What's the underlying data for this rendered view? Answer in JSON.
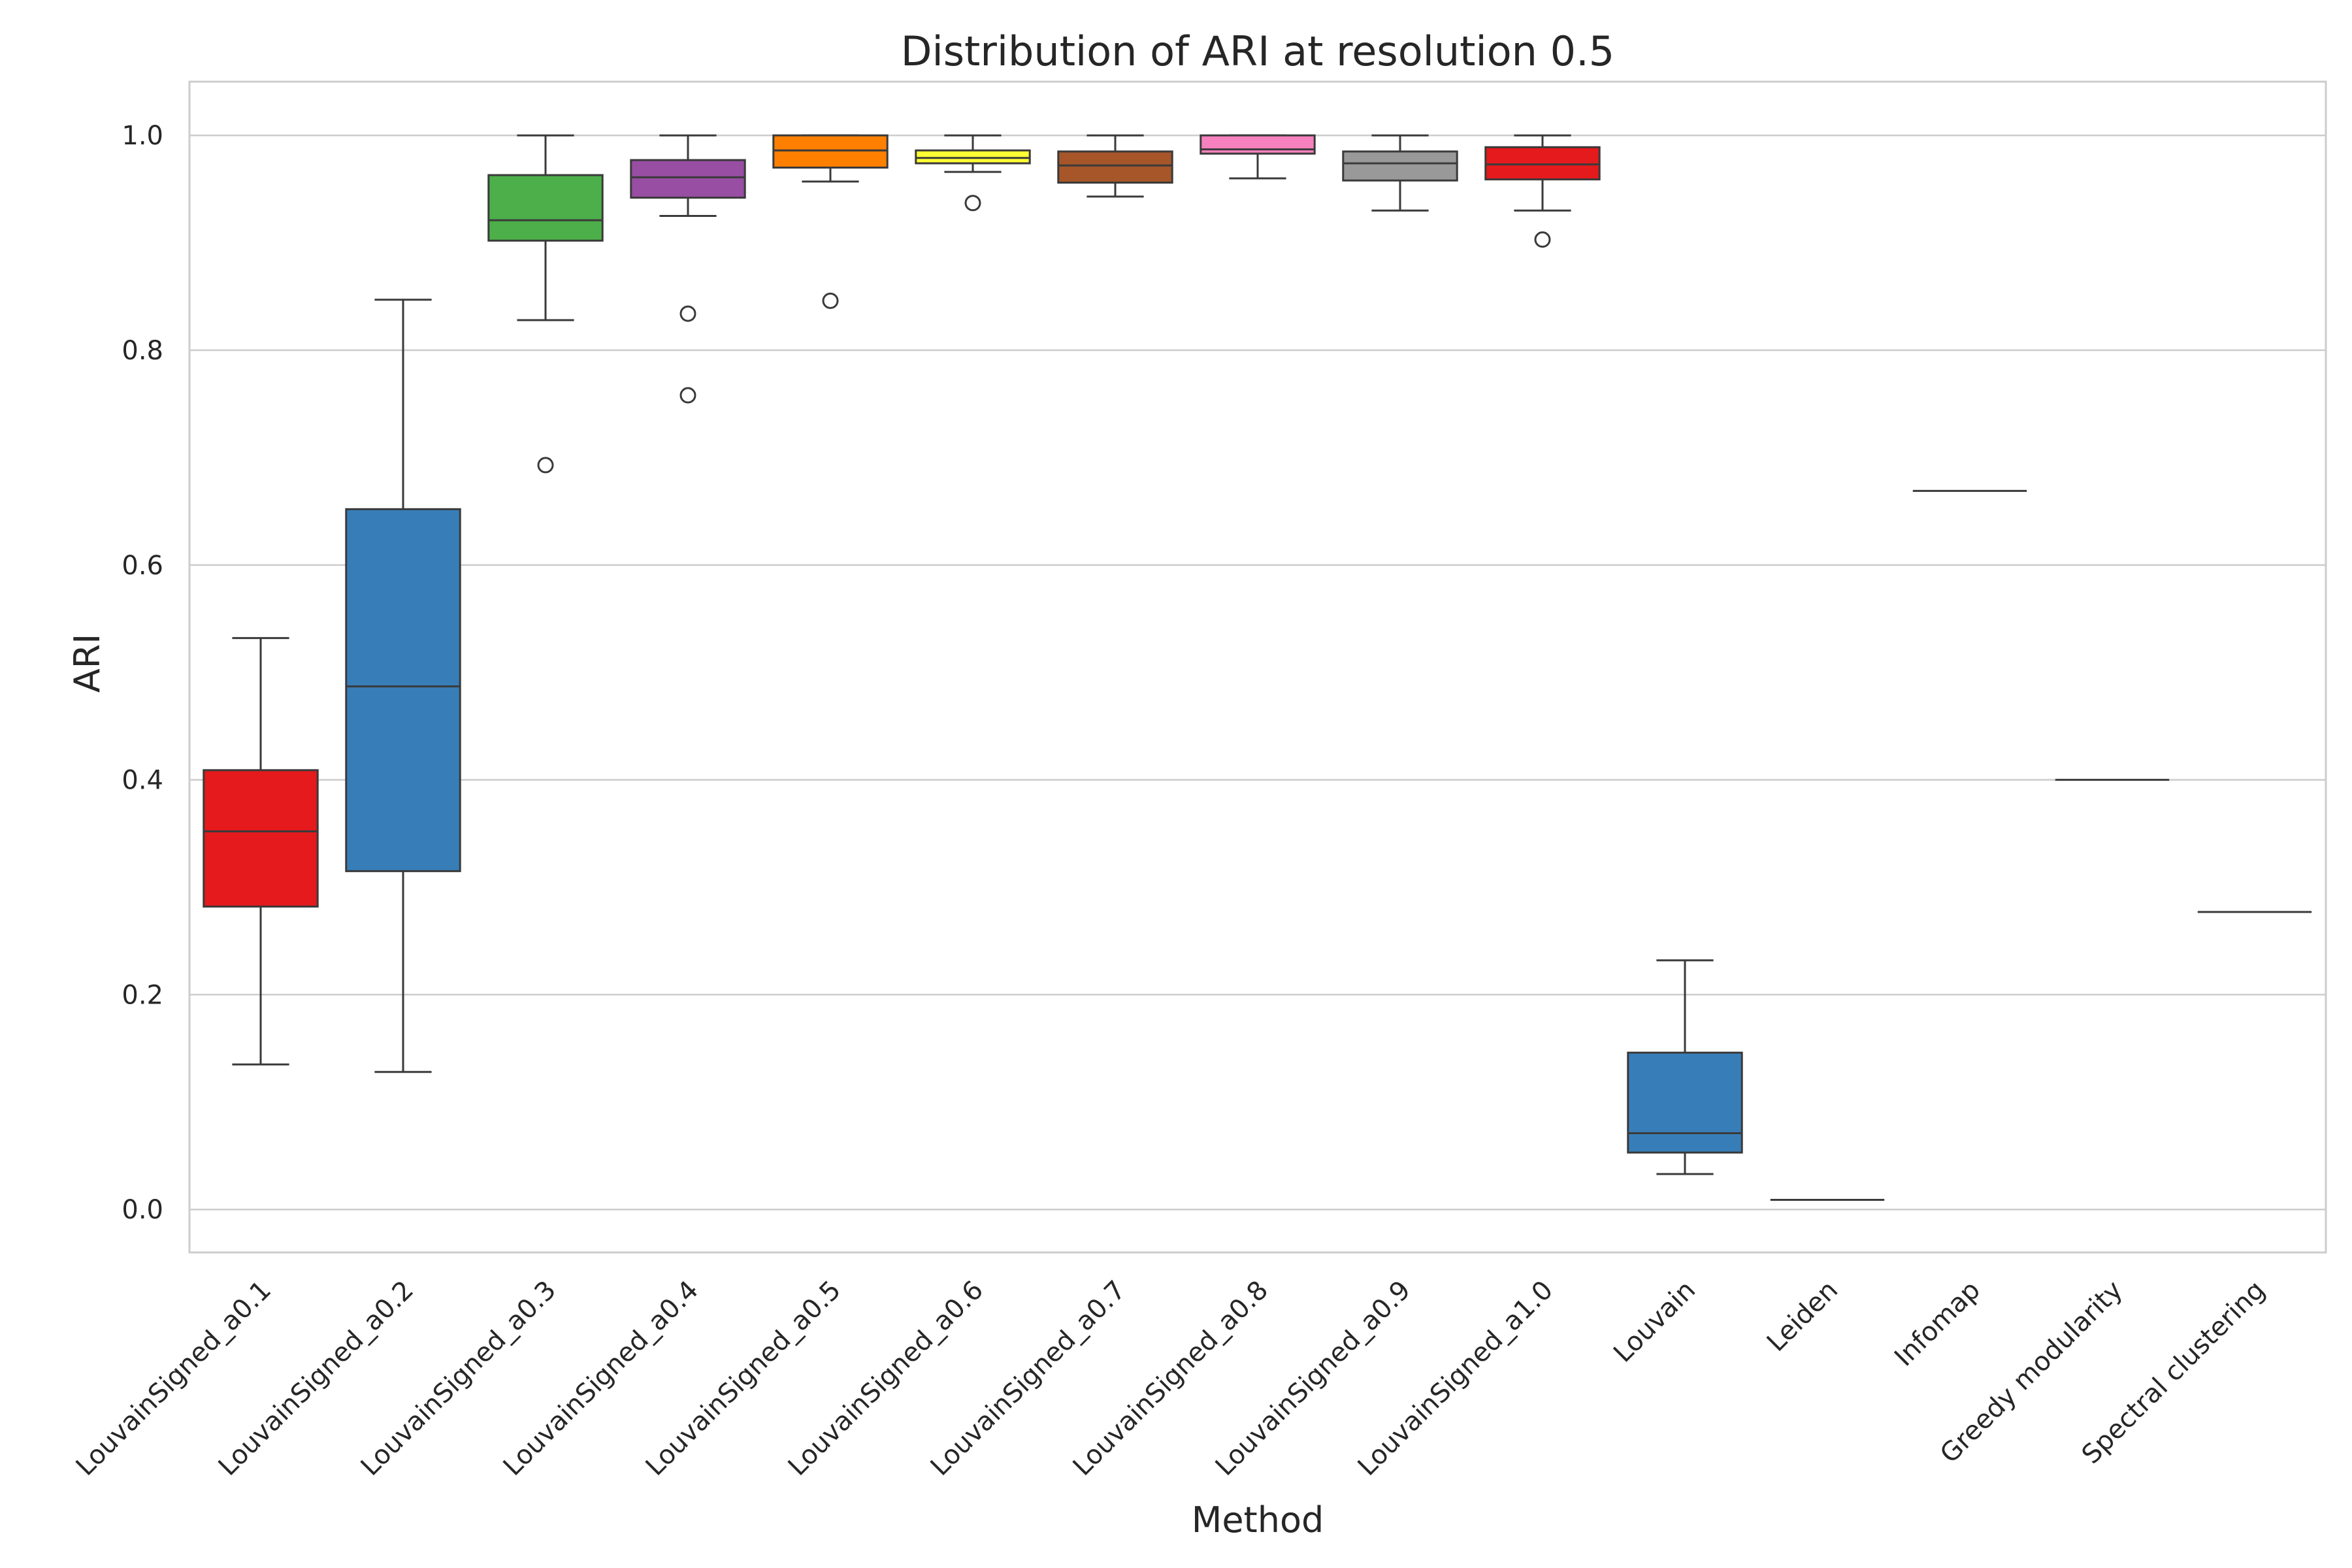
{
  "chart_data": {
    "type": "box",
    "title": "Distribution of ARI at resolution 0.5",
    "xlabel": "Method",
    "ylabel": "ARI",
    "ylim": [
      -0.04,
      1.05
    ],
    "yticks": [
      0.0,
      0.2,
      0.4,
      0.6,
      0.8,
      1.0
    ],
    "ytick_labels": [
      "0.0",
      "0.2",
      "0.4",
      "0.6",
      "0.8",
      "1.0"
    ],
    "grid": true,
    "categories": [
      "LouvainSigned_a0.1",
      "LouvainSigned_a0.2",
      "LouvainSigned_a0.3",
      "LouvainSigned_a0.4",
      "LouvainSigned_a0.5",
      "LouvainSigned_a0.6",
      "LouvainSigned_a0.7",
      "LouvainSigned_a0.8",
      "LouvainSigned_a0.9",
      "LouvainSigned_a1.0",
      "Louvain",
      "Leiden",
      "Infomap",
      "Greedy modularity",
      "Spectral clustering"
    ],
    "boxes": [
      {
        "category": "LouvainSigned_a0.1",
        "whisker_low": 0.135,
        "q1": 0.282,
        "median": 0.352,
        "q3": 0.409,
        "whisker_high": 0.532,
        "outliers": [],
        "color": "#e41a1c"
      },
      {
        "category": "LouvainSigned_a0.2",
        "whisker_low": 0.128,
        "q1": 0.315,
        "median": 0.487,
        "q3": 0.652,
        "whisker_high": 0.847,
        "outliers": [],
        "color": "#377eb8"
      },
      {
        "category": "LouvainSigned_a0.3",
        "whisker_low": 0.828,
        "q1": 0.902,
        "median": 0.921,
        "q3": 0.963,
        "whisker_high": 1.0,
        "outliers": [
          0.693
        ],
        "color": "#4daf4a"
      },
      {
        "category": "LouvainSigned_a0.4",
        "whisker_low": 0.925,
        "q1": 0.942,
        "median": 0.961,
        "q3": 0.977,
        "whisker_high": 1.0,
        "outliers": [
          0.834,
          0.758
        ],
        "color": "#984ea3"
      },
      {
        "category": "LouvainSigned_a0.5",
        "whisker_low": 0.957,
        "q1": 0.97,
        "median": 0.986,
        "q3": 1.0,
        "whisker_high": 1.0,
        "outliers": [
          0.846
        ],
        "color": "#ff7f00"
      },
      {
        "category": "LouvainSigned_a0.6",
        "whisker_low": 0.966,
        "q1": 0.974,
        "median": 0.979,
        "q3": 0.986,
        "whisker_high": 1.0,
        "outliers": [
          0.937
        ],
        "color": "#ffff33"
      },
      {
        "category": "LouvainSigned_a0.7",
        "whisker_low": 0.943,
        "q1": 0.956,
        "median": 0.972,
        "q3": 0.985,
        "whisker_high": 1.0,
        "outliers": [],
        "color": "#a65628"
      },
      {
        "category": "LouvainSigned_a0.8",
        "whisker_low": 0.96,
        "q1": 0.983,
        "median": 0.987,
        "q3": 1.0,
        "whisker_high": 1.0,
        "outliers": [],
        "color": "#f781bf"
      },
      {
        "category": "LouvainSigned_a0.9",
        "whisker_low": 0.93,
        "q1": 0.958,
        "median": 0.974,
        "q3": 0.985,
        "whisker_high": 1.0,
        "outliers": [],
        "color": "#999999"
      },
      {
        "category": "LouvainSigned_a1.0",
        "whisker_low": 0.93,
        "q1": 0.959,
        "median": 0.973,
        "q3": 0.989,
        "whisker_high": 1.0,
        "outliers": [
          0.903
        ],
        "color": "#e41a1c"
      },
      {
        "category": "Louvain",
        "whisker_low": 0.033,
        "q1": 0.053,
        "median": 0.071,
        "q3": 0.146,
        "whisker_high": 0.232,
        "outliers": [],
        "color": "#377eb8"
      },
      {
        "category": "Leiden",
        "whisker_low": 0.009,
        "q1": 0.009,
        "median": 0.009,
        "q3": 0.009,
        "whisker_high": 0.009,
        "outliers": [],
        "color": "#4daf4a"
      },
      {
        "category": "Infomap",
        "whisker_low": 0.669,
        "q1": 0.669,
        "median": 0.669,
        "q3": 0.669,
        "whisker_high": 0.669,
        "outliers": [],
        "color": "#984ea3"
      },
      {
        "category": "Greedy modularity",
        "whisker_low": 0.4,
        "q1": 0.4,
        "median": 0.4,
        "q3": 0.4,
        "whisker_high": 0.4,
        "outliers": [],
        "color": "#ff7f00"
      },
      {
        "category": "Spectral clustering",
        "whisker_low": 0.277,
        "q1": 0.277,
        "median": 0.277,
        "q3": 0.277,
        "whisker_high": 0.277,
        "outliers": [],
        "color": "#ffff33"
      }
    ]
  }
}
